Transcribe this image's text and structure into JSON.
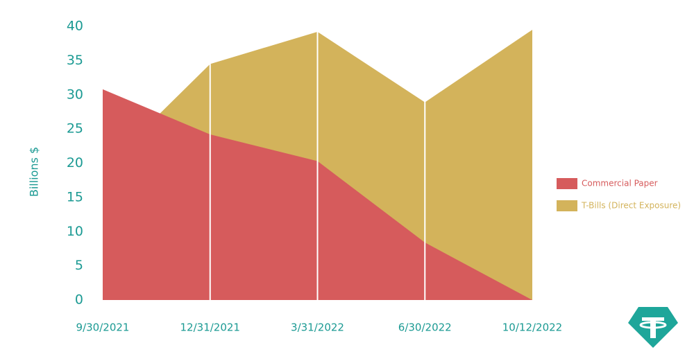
{
  "chart_data": {
    "type": "area",
    "y_axis_label": "Billions $",
    "categories": [
      "9/30/2021",
      "12/31/2021",
      "3/31/2022",
      "6/30/2022",
      "10/12/2022"
    ],
    "series": [
      {
        "name": "Commercial Paper",
        "color": "#d65b5c",
        "values": [
          30.8,
          24.2,
          20.3,
          8.4,
          0
        ]
      },
      {
        "name": "T-Bills (Direct Exposure)",
        "color": "#d3b35b",
        "values": [
          19,
          34.5,
          39.2,
          28.9,
          39.5
        ]
      }
    ],
    "ylim": [
      0,
      40
    ],
    "yticks": [
      0,
      5,
      10,
      15,
      20,
      25,
      30,
      35,
      40
    ],
    "legend": "right"
  }
}
